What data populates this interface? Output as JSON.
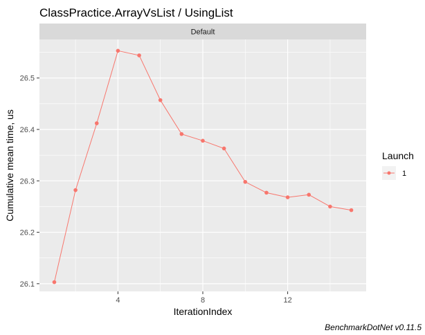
{
  "chart_data": {
    "type": "line",
    "title": "ClassPractice.ArrayVsList / UsingList",
    "facet_label": "Default",
    "xlabel": "IterationIndex",
    "ylabel": "Cumulative mean time, us",
    "xlim": [
      0.3,
      15.7
    ],
    "ylim": [
      26.085,
      26.575
    ],
    "x_ticks": [
      4,
      8,
      12
    ],
    "y_ticks": [
      26.1,
      26.2,
      26.3,
      26.4,
      26.5
    ],
    "grid": true,
    "legend": {
      "title": "Launch",
      "position": "right"
    },
    "series": [
      {
        "name": "1",
        "color": "#F8766D",
        "x": [
          1,
          2,
          3,
          4,
          5,
          6,
          7,
          8,
          9,
          10,
          11,
          12,
          13,
          14,
          15
        ],
        "values": [
          26.103,
          26.282,
          26.412,
          26.553,
          26.544,
          26.457,
          26.391,
          26.378,
          26.363,
          26.298,
          26.277,
          26.268,
          26.273,
          26.25,
          26.243
        ]
      }
    ],
    "caption": "BenchmarkDotNet v0.11.5"
  }
}
